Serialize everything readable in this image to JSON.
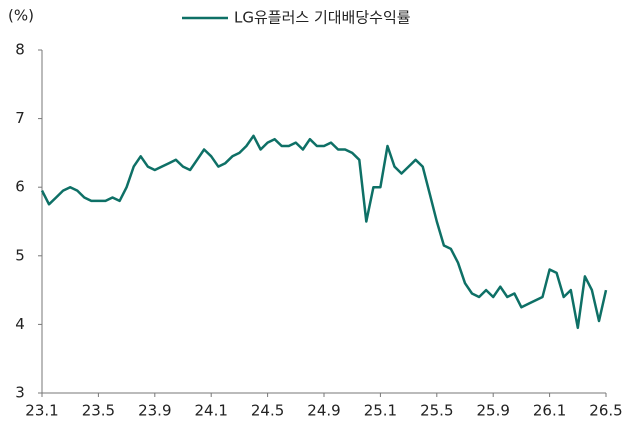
{
  "chart_data": {
    "type": "line",
    "title": "LG유플러스 기대배당수익률",
    "y_label": "(%)",
    "x": [
      0,
      0.5,
      1,
      1.5,
      2,
      2.5,
      3,
      3.5,
      4,
      4.5,
      5,
      5.5,
      6,
      6.5,
      7,
      7.5,
      8,
      8.5,
      9,
      9.5,
      10,
      10.5,
      11,
      11.5,
      12,
      12.5,
      13,
      13.5,
      14,
      14.5,
      15,
      15.5,
      16,
      16.5,
      17,
      17.5,
      18,
      18.5,
      19,
      19.5,
      20,
      20.5,
      21,
      21.5,
      22,
      22.5,
      23,
      23.5,
      24,
      24.5,
      25,
      25.5,
      26,
      26.5,
      27,
      27.5,
      28,
      28.5,
      29,
      29.5,
      30,
      30.5,
      31,
      31.5,
      32,
      32.5,
      33,
      33.5,
      34,
      34.5,
      35,
      35.5,
      36,
      36.5,
      37,
      37.5,
      38,
      38.5,
      39,
      39.5,
      40
    ],
    "series": [
      {
        "name": "LG유플러스 기대배당수익률",
        "color": "#0e7066",
        "values": [
          5.95,
          5.75,
          5.85,
          5.95,
          6.0,
          5.95,
          5.85,
          5.8,
          5.8,
          5.8,
          5.85,
          5.8,
          6.0,
          6.3,
          6.45,
          6.3,
          6.25,
          6.3,
          6.35,
          6.4,
          6.3,
          6.25,
          6.4,
          6.55,
          6.45,
          6.3,
          6.35,
          6.45,
          6.5,
          6.6,
          6.75,
          6.55,
          6.65,
          6.7,
          6.6,
          6.6,
          6.65,
          6.55,
          6.7,
          6.6,
          6.6,
          6.65,
          6.55,
          6.55,
          6.5,
          6.4,
          5.5,
          6.0,
          6.0,
          6.6,
          6.3,
          6.2,
          6.3,
          6.4,
          6.3,
          5.9,
          5.5,
          5.15,
          5.1,
          4.9,
          4.6,
          4.45,
          4.4,
          4.5,
          4.4,
          4.55,
          4.4,
          4.45,
          4.25,
          4.3,
          4.35,
          4.4,
          4.8,
          4.75,
          4.4,
          4.5,
          3.95,
          4.7,
          4.5,
          4.05,
          4.5
        ]
      }
    ],
    "xlim": [
      0,
      40
    ],
    "xticks": [
      {
        "value": 0,
        "label": "23.1"
      },
      {
        "value": 4,
        "label": "23.5"
      },
      {
        "value": 8,
        "label": "23.9"
      },
      {
        "value": 12,
        "label": "24.1"
      },
      {
        "value": 16,
        "label": "24.5"
      },
      {
        "value": 20,
        "label": "24.9"
      },
      {
        "value": 24,
        "label": "25.1"
      },
      {
        "value": 28,
        "label": "25.5"
      },
      {
        "value": 32,
        "label": "25.9"
      },
      {
        "value": 36,
        "label": "26.1"
      },
      {
        "value": 40,
        "label": "26.5"
      }
    ],
    "ylim": [
      3,
      8
    ],
    "yticks": [
      3,
      4,
      5,
      6,
      7,
      8
    ],
    "grid": false,
    "legend": "top"
  }
}
